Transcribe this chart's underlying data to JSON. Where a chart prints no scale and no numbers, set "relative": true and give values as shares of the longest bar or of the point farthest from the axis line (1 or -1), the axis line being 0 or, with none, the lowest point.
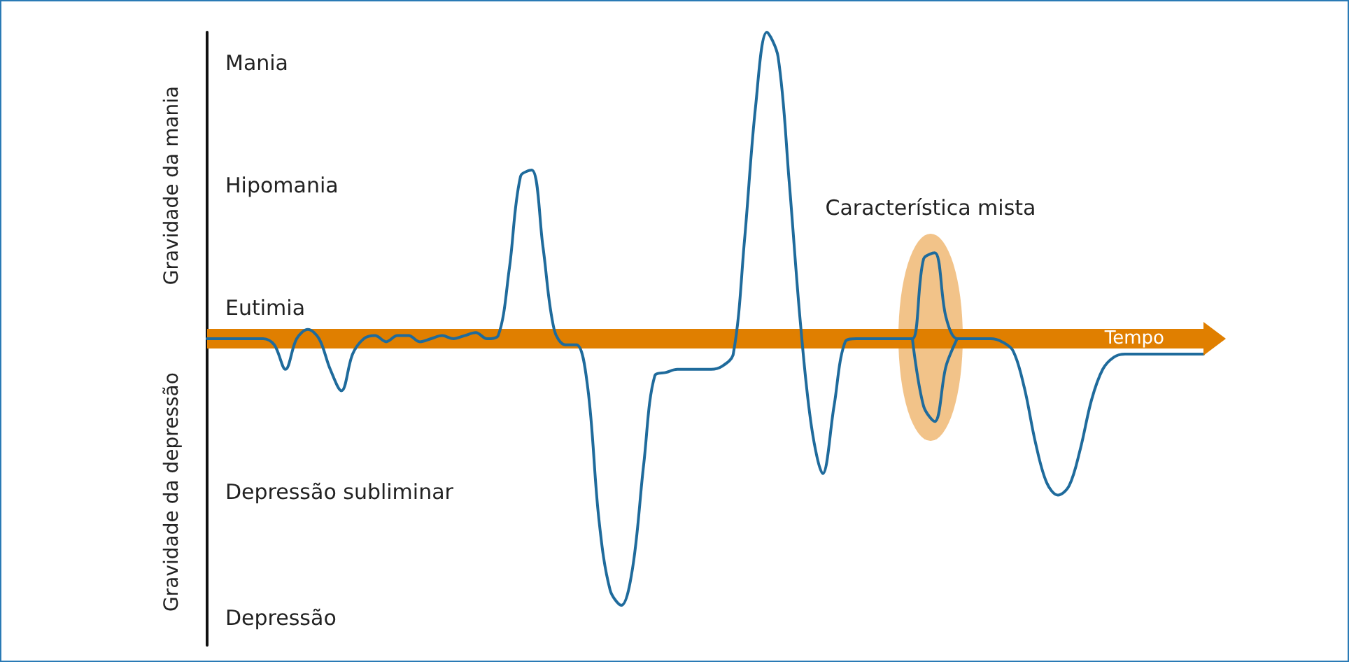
{
  "chart_data": {
    "type": "line",
    "relative": true,
    "xlabel": "Tempo",
    "ylabel": "Gravidade da mania",
    "y2label": "Gravidade da depressão",
    "grid": false,
    "line_style": "solid",
    "ref_lines": [
      {
        "axis": "y",
        "value": 0,
        "color": "#e07f00"
      }
    ],
    "annotations": [
      "Mania",
      "Hipomania",
      "Eutimia",
      "Depressão subliminar",
      "Depressão",
      "Característica mista"
    ],
    "categories": [
      null,
      null,
      null,
      null,
      null,
      null,
      null,
      null,
      null,
      null,
      null,
      null,
      null,
      null,
      null,
      null,
      null,
      null,
      null,
      null,
      null,
      null,
      null,
      null,
      null,
      null,
      null,
      null,
      null,
      null,
      null,
      null,
      null,
      null,
      null,
      null,
      null,
      null,
      null,
      null,
      null,
      null,
      null,
      null,
      null,
      null,
      null,
      null,
      null,
      null,
      null,
      null,
      null,
      null,
      null,
      null,
      null,
      null,
      null,
      null,
      null,
      null,
      null,
      null,
      null,
      null,
      null,
      null,
      null,
      null,
      null,
      null,
      null,
      null,
      null,
      null,
      null,
      null,
      null,
      null,
      null,
      null,
      null,
      null,
      null,
      null,
      null,
      null,
      null,
      null
    ],
    "series": [
      {
        "color": "#1f6b9c",
        "values": [
          0,
          0,
          0,
          0,
          0,
          0,
          -0.02,
          -0.1,
          0,
          0.03,
          0,
          -0.1,
          -0.17,
          -0.05,
          0,
          0.01,
          -0.01,
          0.01,
          0.01,
          -0.01,
          0,
          0.01,
          0,
          0.01,
          0.02,
          0,
          0.01,
          0.23,
          0.53,
          0.55,
          0.3,
          0.03,
          -0.02,
          -0.02,
          -0.16,
          -0.59,
          -0.82,
          -0.87,
          -0.75,
          -0.41,
          -0.12,
          -0.11,
          -0.1,
          -0.1,
          -0.1,
          -0.1,
          -0.09,
          -0.05,
          0.32,
          0.76,
          1,
          0.92,
          0.51,
          0.05,
          -0.29,
          -0.44,
          -0.22,
          -0.01,
          0,
          0,
          0,
          0,
          0,
          0,
          0.26,
          0.28,
          0.07,
          0,
          0,
          0,
          0,
          -0.01,
          -0.04,
          -0.16,
          -0.34,
          -0.47,
          -0.51,
          -0.48,
          -0.36,
          -0.2,
          -0.1,
          -0.06,
          -0.05,
          -0.05,
          -0.05,
          -0.05,
          -0.05,
          -0.05,
          -0.05,
          -0.05
        ]
      },
      {
        "color": "#1f6b9c",
        "values": [
          null,
          null,
          null,
          null,
          null,
          null,
          null,
          null,
          null,
          null,
          null,
          null,
          null,
          null,
          null,
          null,
          null,
          null,
          null,
          null,
          null,
          null,
          null,
          null,
          null,
          null,
          null,
          null,
          null,
          null,
          null,
          null,
          null,
          null,
          null,
          null,
          null,
          null,
          null,
          null,
          null,
          null,
          null,
          null,
          null,
          null,
          null,
          null,
          null,
          null,
          null,
          null,
          null,
          null,
          null,
          null,
          null,
          null,
          null,
          null,
          null,
          null,
          null,
          0,
          -0.22,
          -0.27,
          -0.09,
          0,
          null,
          null,
          null,
          null,
          null,
          null,
          null,
          null,
          null,
          null,
          null,
          null,
          null,
          null,
          null,
          null,
          null,
          null,
          null,
          null,
          null,
          null
        ]
      }
    ]
  }
}
